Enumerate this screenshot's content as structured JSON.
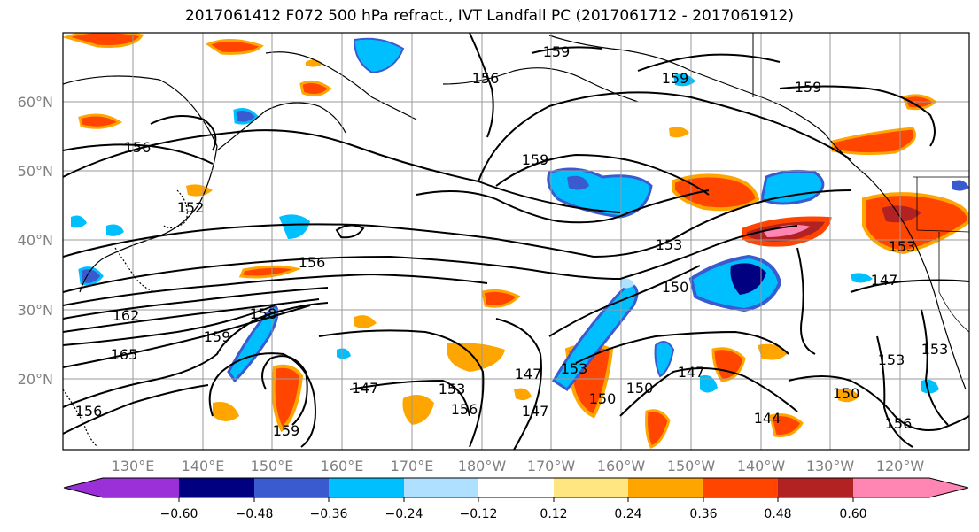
{
  "title": "2017061412 F072 500 hPa refract., IVT Landfall PC (2017061712 - 2017061912)",
  "map": {
    "lat_labels": [
      "60°N",
      "50°N",
      "40°N",
      "30°N",
      "20°N"
    ],
    "lon_labels": [
      "130°E",
      "140°E",
      "150°E",
      "160°E",
      "170°E",
      "180°W",
      "170°W",
      "160°W",
      "150°W",
      "140°W",
      "130°W",
      "120°W"
    ],
    "contour_labels": [
      "156",
      "159",
      "159",
      "159",
      "159",
      "156",
      "153",
      "150",
      "152",
      "162",
      "165",
      "159",
      "158",
      "156",
      "147",
      "153",
      "156",
      "147",
      "147",
      "150",
      "153",
      "150",
      "147",
      "144",
      "150",
      "156",
      "153",
      "153",
      "147",
      "153",
      "156",
      "159"
    ],
    "contour_color": "#000000",
    "grid_color": "#9a9a9a"
  },
  "colorbar": {
    "colors": [
      "#9b30d9",
      "#000080",
      "#3a5bcf",
      "#00bfff",
      "#b0e0ff",
      "#ffffff",
      "#ffe680",
      "#ffa500",
      "#ff4500",
      "#b22222",
      "#ff85b2"
    ],
    "tick_labels": [
      "−0.60",
      "−0.48",
      "−0.36",
      "−0.24",
      "−0.12",
      "0.12",
      "0.24",
      "0.36",
      "0.48",
      "0.60"
    ]
  }
}
